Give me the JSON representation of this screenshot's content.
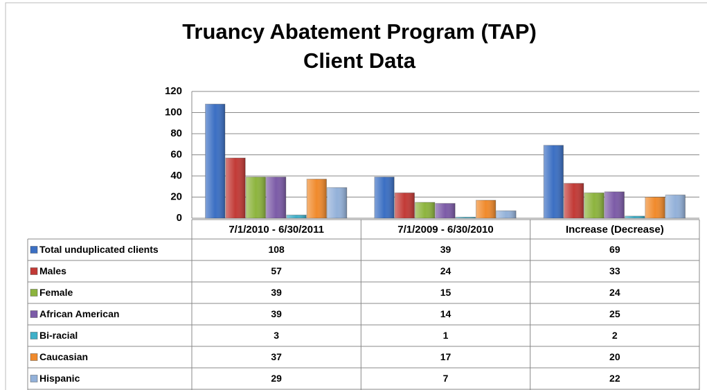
{
  "chart_data": {
    "type": "bar",
    "title_lines": [
      "Truancy Abatement Program (TAP)",
      "Client Data"
    ],
    "categories": [
      "7/1/2010 - 6/30/2011",
      "7/1/2009 - 6/30/2010",
      "Increase (Decrease)"
    ],
    "series": [
      {
        "name": "Total unduplicated clients",
        "color": "#3b6fc3",
        "values": [
          108,
          39,
          69
        ]
      },
      {
        "name": "Males",
        "color": "#c23a36",
        "values": [
          57,
          24,
          33
        ]
      },
      {
        "name": "Female",
        "color": "#8db43e",
        "values": [
          39,
          15,
          24
        ]
      },
      {
        "name": "African American",
        "color": "#7c5ba7",
        "values": [
          39,
          14,
          25
        ]
      },
      {
        "name": "Bi-racial",
        "color": "#3fb0c9",
        "values": [
          3,
          1,
          2
        ]
      },
      {
        "name": "Caucasian",
        "color": "#f08a2c",
        "values": [
          37,
          17,
          20
        ]
      },
      {
        "name": "Hispanic",
        "color": "#93b1d9",
        "values": [
          29,
          7,
          22
        ]
      }
    ],
    "ylim": [
      0,
      120
    ],
    "yticks": [
      0,
      20,
      40,
      60,
      80,
      100,
      120
    ],
    "grid": true
  }
}
